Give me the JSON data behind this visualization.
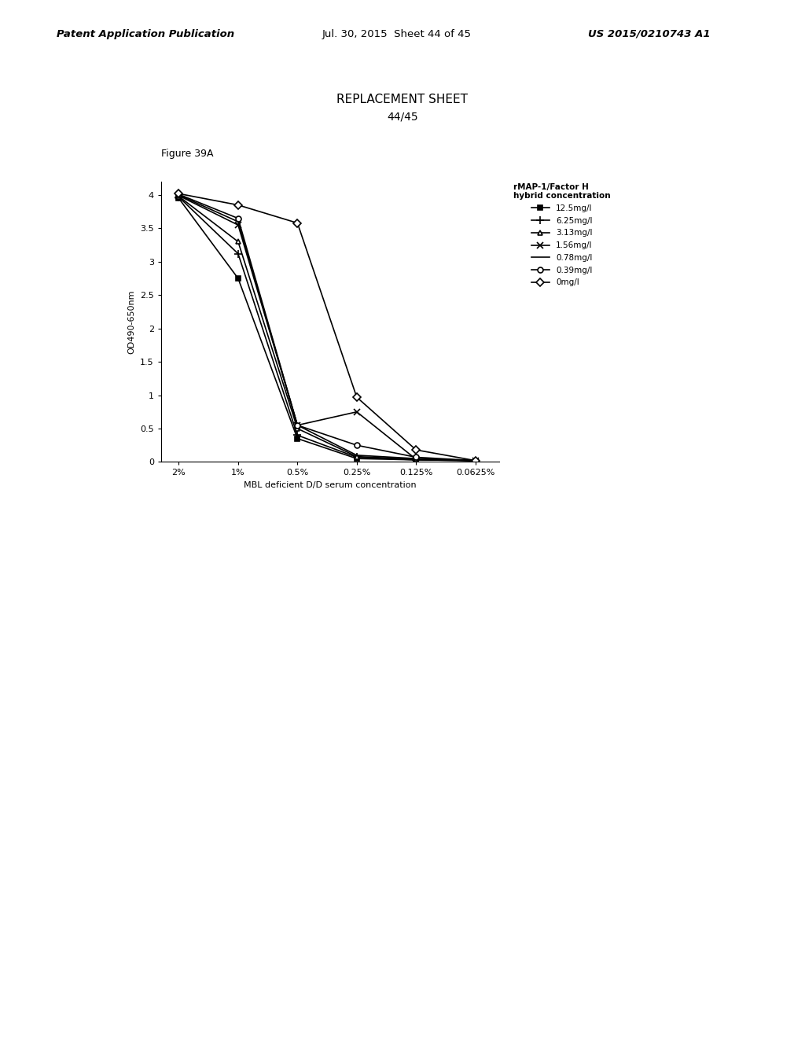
{
  "figure_label": "Figure 39A",
  "replacement_sheet": "REPLACEMENT SHEET",
  "page_label": "44/45",
  "xlabel": "MBL deficient D/D serum concentration",
  "ylabel": "OD490-650nm",
  "legend_title": "rMAP-1/Factor H\nhybrid concentration",
  "x_labels": [
    "2%",
    "1%",
    "0.5%",
    "0.25%",
    "0.125%",
    "0.0625%"
  ],
  "x_values": [
    0,
    1,
    2,
    3,
    4,
    5
  ],
  "ylim": [
    0,
    4.2
  ],
  "yticks": [
    0,
    0.5,
    1,
    1.5,
    2,
    2.5,
    3,
    3.5,
    4
  ],
  "series": [
    {
      "label": "12.5mg/l",
      "marker": "s",
      "values": [
        3.95,
        2.75,
        0.35,
        0.05,
        0.03,
        0.02
      ],
      "color": "black",
      "markersize": 4,
      "linestyle": "-",
      "fillstyle": "full"
    },
    {
      "label": "6.25mg/l",
      "marker": "+",
      "values": [
        3.97,
        3.12,
        0.4,
        0.07,
        0.03,
        0.02
      ],
      "color": "black",
      "markersize": 7,
      "linestyle": "-",
      "fillstyle": "full"
    },
    {
      "label": "3.13mg/l",
      "marker": "^",
      "values": [
        3.98,
        3.3,
        0.5,
        0.08,
        0.04,
        0.02
      ],
      "color": "black",
      "markersize": 4,
      "linestyle": "-",
      "fillstyle": "none"
    },
    {
      "label": "1.56mg/l",
      "marker": "x",
      "values": [
        3.99,
        3.55,
        0.55,
        0.75,
        0.04,
        0.02
      ],
      "color": "black",
      "markersize": 6,
      "linestyle": "-",
      "fillstyle": "full"
    },
    {
      "label": "0.78mg/l",
      "marker": "None",
      "values": [
        4.0,
        3.6,
        0.55,
        0.1,
        0.05,
        0.02
      ],
      "color": "black",
      "markersize": 0,
      "linestyle": "-",
      "fillstyle": "full"
    },
    {
      "label": "0.39mg/l",
      "marker": "o",
      "values": [
        4.01,
        3.65,
        0.55,
        0.25,
        0.07,
        0.02
      ],
      "color": "black",
      "markersize": 5,
      "linestyle": "-",
      "fillstyle": "none"
    },
    {
      "label": "0mg/l",
      "marker": "D",
      "values": [
        4.02,
        3.85,
        3.58,
        0.97,
        0.18,
        0.02
      ],
      "color": "black",
      "markersize": 5,
      "linestyle": "-",
      "fillstyle": "none"
    }
  ],
  "background_color": "#ffffff"
}
